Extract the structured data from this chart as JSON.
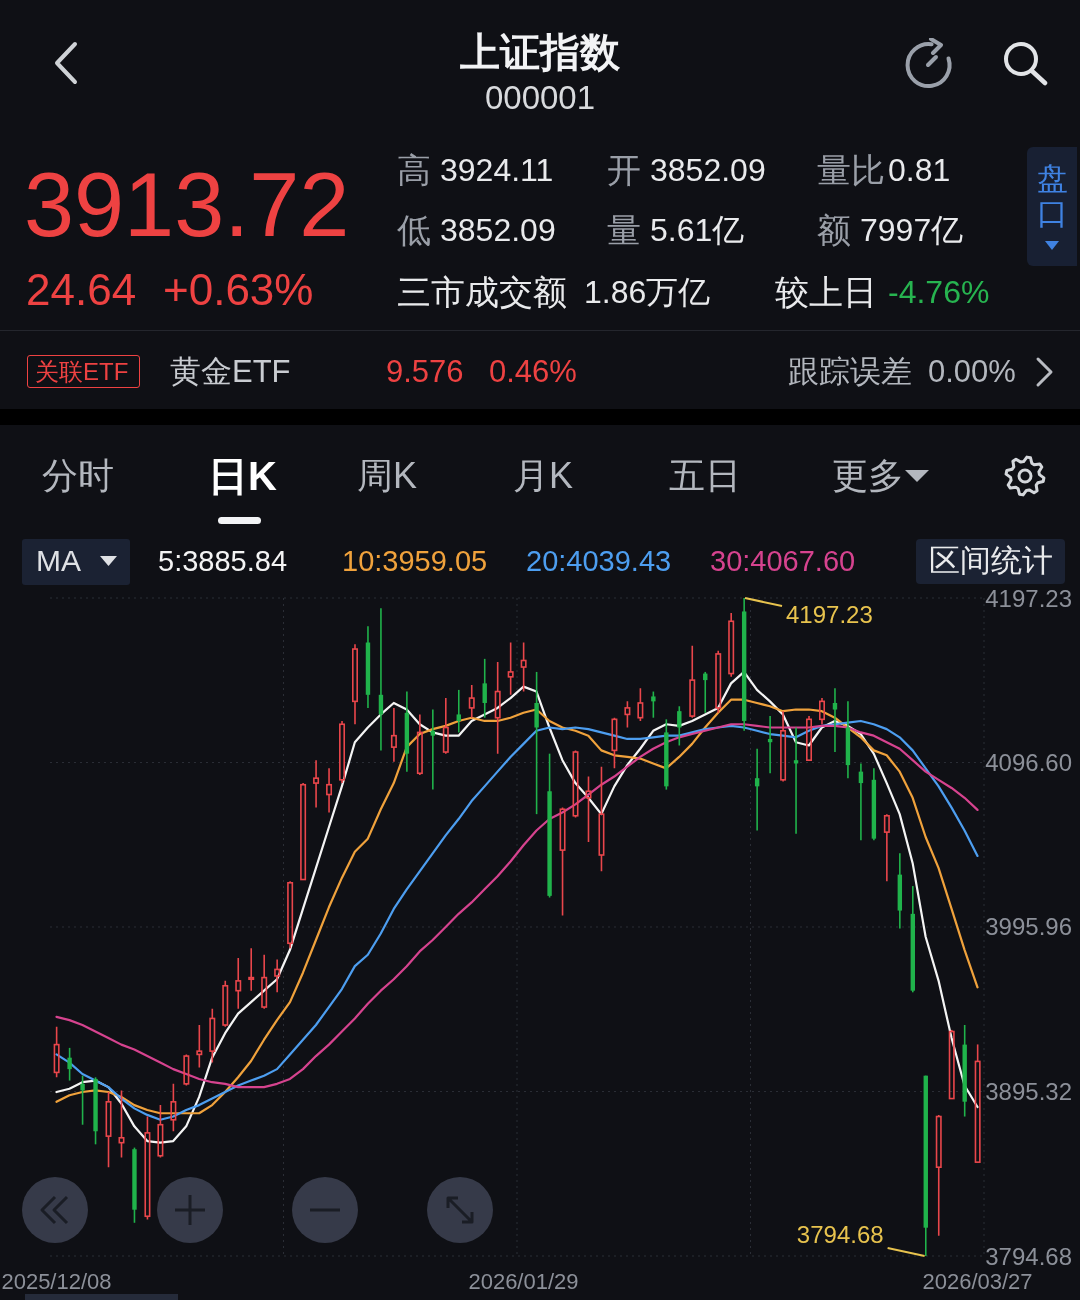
{
  "chart_data": {
    "type": "candlestick",
    "title": "上证指数",
    "subtitle": "000001",
    "categories": [
      "2025/12/08",
      null,
      null,
      null,
      null,
      null,
      null,
      null,
      null,
      null,
      null,
      null,
      null,
      null,
      null,
      null,
      null,
      null,
      null,
      null,
      null,
      null,
      null,
      null,
      null,
      null,
      null,
      null,
      null,
      null,
      null,
      null,
      null,
      null,
      null,
      null,
      "2026/01/29",
      null,
      null,
      null,
      null,
      null,
      null,
      null,
      null,
      null,
      null,
      null,
      null,
      null,
      null,
      null,
      null,
      null,
      null,
      null,
      null,
      null,
      null,
      null,
      null,
      null,
      null,
      null,
      null,
      null,
      null,
      null,
      null,
      null,
      null,
      "2026/03/27"
    ],
    "ohlc": [
      [
        3907,
        3935,
        3904,
        3924
      ],
      [
        3916,
        3922,
        3902,
        3909
      ],
      [
        3900,
        3905,
        3875,
        3896
      ],
      [
        3903,
        3904,
        3863,
        3871
      ],
      [
        3868,
        3895,
        3849,
        3889
      ],
      [
        3864,
        3896,
        3855,
        3867
      ],
      [
        3860,
        3861,
        3815,
        3823
      ],
      [
        3819,
        3880,
        3817,
        3870
      ],
      [
        3856,
        3887,
        3855,
        3875
      ],
      [
        3878,
        3900,
        3871,
        3889
      ],
      [
        3900,
        3918,
        3899,
        3917
      ],
      [
        3918,
        3936,
        3910,
        3920
      ],
      [
        3920,
        3946,
        3913,
        3940
      ],
      [
        3936,
        3963,
        3935,
        3960
      ],
      [
        3957,
        3977,
        3946,
        3963
      ],
      [
        3964,
        3983,
        3957,
        3965
      ],
      [
        3947,
        3979,
        3946,
        3965
      ],
      [
        3966,
        3976,
        3956,
        3970
      ],
      [
        3986,
        4024,
        3983,
        4023
      ],
      [
        4025,
        4084,
        4025,
        4083
      ],
      [
        4084,
        4098,
        4069,
        4087
      ],
      [
        4077,
        4093,
        4066,
        4083
      ],
      [
        4086,
        4122,
        4084,
        4120
      ],
      [
        4134,
        4169,
        4120,
        4166
      ],
      [
        4170,
        4180,
        4130,
        4138
      ],
      [
        4138,
        4191,
        4104,
        4126
      ],
      [
        4106,
        4130,
        4097,
        4113
      ],
      [
        4127,
        4140,
        4091,
        4102
      ],
      [
        4090,
        4126,
        4089,
        4115
      ],
      [
        4116,
        4129,
        4080,
        4113
      ],
      [
        4103,
        4136,
        4102,
        4118
      ],
      [
        4126,
        4141,
        4115,
        4122
      ],
      [
        4130,
        4144,
        4124,
        4136
      ],
      [
        4145,
        4160,
        4124,
        4133
      ],
      [
        4124,
        4158,
        4102,
        4140
      ],
      [
        4149,
        4170,
        4138,
        4152
      ],
      [
        4155,
        4170,
        4140,
        4159
      ],
      [
        4133,
        4152,
        4065,
        4118
      ],
      [
        4079,
        4102,
        4014,
        4015
      ],
      [
        4043,
        4069,
        4003,
        4068
      ],
      [
        4064,
        4104,
        4063,
        4103
      ],
      [
        4075,
        4088,
        4048,
        4079
      ],
      [
        4040,
        4094,
        4030,
        4065
      ],
      [
        4104,
        4124,
        4093,
        4123
      ],
      [
        4126,
        4134,
        4118,
        4130
      ],
      [
        4124,
        4142,
        4122,
        4133
      ],
      [
        4137,
        4140,
        4124,
        4134
      ],
      [
        4115,
        4123,
        4080,
        4082
      ],
      [
        4128,
        4131,
        4107,
        4118
      ],
      [
        4125,
        4168,
        4124,
        4147
      ],
      [
        4151,
        4152,
        4127,
        4147
      ],
      [
        4130,
        4165,
        4127,
        4163
      ],
      [
        4151,
        4188,
        4149,
        4183
      ],
      [
        4189,
        4197.23,
        4116,
        4122
      ],
      [
        4087,
        4105,
        4055,
        4082
      ],
      [
        4111,
        4125,
        4090,
        4109
      ],
      [
        4086,
        4128,
        4085,
        4116
      ],
      [
        4098,
        4118,
        4053,
        4096
      ],
      [
        4098,
        4125,
        4098,
        4123
      ],
      [
        4123,
        4136,
        4120,
        4134
      ],
      [
        4133,
        4142,
        4103,
        4129
      ],
      [
        4118,
        4134,
        4087,
        4095
      ],
      [
        4091,
        4096,
        4049,
        4084
      ],
      [
        4086,
        4093,
        4049,
        4050
      ],
      [
        4054,
        4065,
        4024,
        4064
      ],
      [
        4028,
        4041,
        3995,
        4006
      ],
      [
        4004,
        4021,
        3956,
        3957
      ],
      [
        3905,
        3905,
        3794.68,
        3812
      ],
      [
        3849,
        3881,
        3807,
        3880
      ],
      [
        3891,
        3933,
        3891,
        3932
      ],
      [
        3924,
        3936,
        3880,
        3889.08
      ],
      [
        3852.09,
        3924.11,
        3852.09,
        3913.72
      ]
    ],
    "colors": [
      "#e9464b",
      "#20b34b",
      "#20b34b",
      "#20b34b",
      "#e9464b",
      "#e9464b",
      "#20b34b",
      "#e9464b",
      "#e9464b",
      "#e9464b",
      "#e9464b",
      "#e9464b",
      "#e9464b",
      "#e9464b",
      "#e9464b",
      "#e9464b",
      "#e9464b",
      "#e9464b",
      "#e9464b",
      "#e9464b",
      "#e9464b",
      "#e9464b",
      "#e9464b",
      "#e9464b",
      "#20b34b",
      "#20b34b",
      "#e9464b",
      "#20b34b",
      "#e9464b",
      "#20b34b",
      "#e9464b",
      "#20b34b",
      "#e9464b",
      "#20b34b",
      "#e9464b",
      "#e9464b",
      "#e9464b",
      "#20b34b",
      "#20b34b",
      "#e9464b",
      "#e9464b",
      "#e9464b",
      "#e9464b",
      "#e9464b",
      "#e9464b",
      "#e9464b",
      "#20b34b",
      "#20b34b",
      "#20b34b",
      "#e9464b",
      "#20b34b",
      "#e9464b",
      "#e9464b",
      "#20b34b",
      "#20b34b",
      "#20b34b",
      "#e9464b",
      "#20b34b",
      "#e9464b",
      "#e9464b",
      "#20b34b",
      "#20b34b",
      "#20b34b",
      "#20b34b",
      "#e9464b",
      "#20b34b",
      "#20b34b",
      "#20b34b",
      "#e9464b",
      "#e9464b",
      "#20b34b",
      "#e9464b"
    ],
    "series": [
      {
        "name": "5:3885.84",
        "type": "line",
        "color": "#f4f4f4",
        "values": [
          3895,
          3897,
          3901,
          3902,
          3898,
          3888,
          3874,
          3865,
          3864,
          3865,
          3874,
          3892,
          3916,
          3931,
          3943,
          3950,
          3957,
          3964,
          3982,
          4007,
          4032,
          4057,
          4082,
          4109,
          4118,
          4126,
          4133,
          4129,
          4120,
          4115,
          4113,
          4113,
          4122,
          4126,
          4130,
          4136,
          4143,
          4140,
          4118,
          4098,
          4084,
          4075,
          4065,
          4082,
          4095,
          4105,
          4116,
          4120,
          4119,
          4122,
          4126,
          4130,
          4145,
          4152,
          4141,
          4134,
          4126,
          4109,
          4107,
          4118,
          4122,
          4119,
          4114,
          4102,
          4084,
          4065,
          4035,
          3990,
          3963,
          3928,
          3899,
          3885.84
        ]
      },
      {
        "name": "10:3959.05",
        "type": "line",
        "color": "#f0a23c",
        "values": [
          3889,
          3893,
          3895,
          3896,
          3895,
          3892,
          3887,
          3884,
          3882,
          3882,
          3882,
          3882,
          3887,
          3895,
          3904,
          3914,
          3927,
          3939,
          3950,
          3968,
          3988,
          4008,
          4026,
          4042,
          4050,
          4068,
          4084,
          4106,
          4114,
          4117,
          4119,
          4122,
          4124,
          4122,
          4122,
          4124,
          4127,
          4129,
          4122,
          4118,
          4116,
          4113,
          4104,
          4101,
          4100,
          4099,
          4096,
          4093,
          4100,
          4108,
          4118,
          4127,
          4135,
          4135,
          4133,
          4131,
          4128,
          4129,
          4129,
          4128,
          4124,
          4118,
          4112,
          4104,
          4101,
          4091,
          4075,
          4051,
          4032,
          4007,
          3982,
          3959.05
        ]
      },
      {
        "name": "20:4039.43",
        "type": "line",
        "color": "#4d9ef0",
        "values": [
          3918,
          3913,
          3906,
          3902,
          3898,
          3891,
          3885,
          3881,
          3878,
          3880,
          3884,
          3887,
          3891,
          3895,
          3899,
          3902,
          3905,
          3909,
          3918,
          3927,
          3936,
          3947,
          3958,
          3972,
          3979,
          3992,
          4007,
          4019,
          4030,
          4041,
          4052,
          4062,
          4073,
          4082,
          4091,
          4100,
          4108,
          4116,
          4118,
          4117,
          4118,
          4117,
          4115,
          4113,
          4111,
          4111,
          4112,
          4113,
          4113,
          4115,
          4117,
          4118,
          4119,
          4118,
          4116,
          4114,
          4113,
          4112,
          4116,
          4119,
          4120,
          4121,
          4122,
          4120,
          4117,
          4112,
          4104,
          4093,
          4082,
          4069,
          4055,
          4039.43
        ]
      },
      {
        "name": "30:4067.60",
        "type": "line",
        "color": "#d6438f",
        "values": [
          3941,
          3939,
          3936,
          3932,
          3928,
          3924,
          3921,
          3917,
          3913,
          3909,
          3906,
          3903,
          3901,
          3900,
          3898,
          3898,
          3898,
          3900,
          3903,
          3909,
          3917,
          3924,
          3932,
          3940,
          3949,
          3957,
          3964,
          3972,
          3981,
          3988,
          3996,
          4004,
          4011,
          4019,
          4027,
          4036,
          4046,
          4055,
          4062,
          4066,
          4071,
          4077,
          4083,
          4088,
          4094,
          4100,
          4105,
          4109,
          4112,
          4114,
          4116,
          4118,
          4120,
          4120,
          4119,
          4118,
          4118,
          4118,
          4118,
          4119,
          4119,
          4118,
          4115,
          4113,
          4109,
          4105,
          4098,
          4091,
          4086,
          4081,
          4075,
          4067.6
        ]
      }
    ],
    "ylim": [
      3794.68,
      4197.23
    ],
    "yticks": [
      3794.68,
      3895.32,
      3995.96,
      {
        "value": 4096.6,
        "label": "4096.60"
      },
      4197.23
    ],
    "grid": true,
    "legend": "top left",
    "legend_title": "MA",
    "annotations": [
      "4197.23",
      "3794.68",
      "3913.72",
      "24.64",
      "+0.63%",
      "高",
      "3924.11",
      "开",
      "3852.09",
      "量比",
      "0.81",
      "低",
      "3852.09",
      "量",
      "5.61亿",
      "额",
      "7997亿",
      "三市成交额",
      "1.86万亿",
      "较上日",
      "-4.76%",
      "盘口",
      "关联ETF",
      "黄金ETF",
      "9.576",
      "0.46%",
      "跟踪误差",
      "0.00%",
      "分时",
      "日K",
      "周K",
      "月K",
      "五日",
      "更多",
      "区间统计"
    ]
  }
}
